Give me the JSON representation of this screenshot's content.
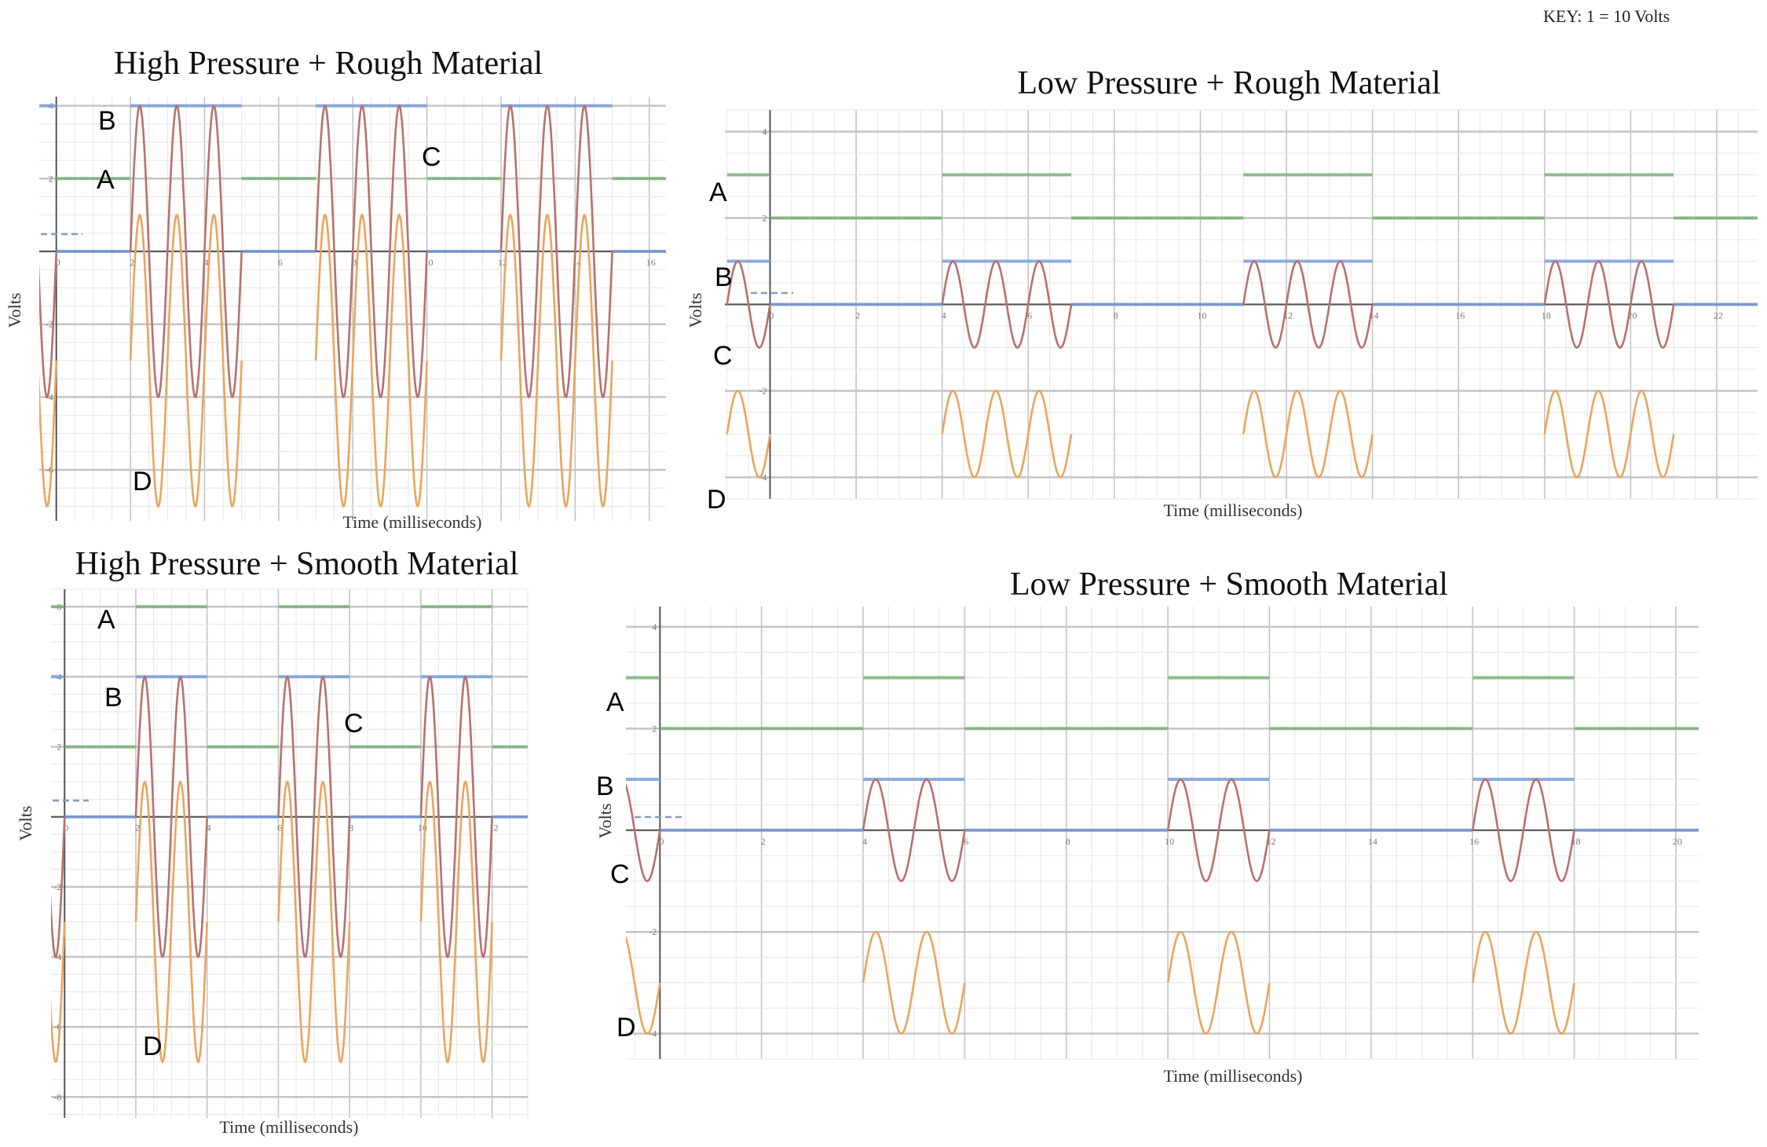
{
  "key": "KEY: 1 = 10 Volts",
  "colors": {
    "A": "#7db07b",
    "B": "#7a9fd8",
    "C": "#b8716d",
    "D": "#eba45c",
    "grid_minor": "#e6e6e6",
    "grid_major": "#c4c4c4",
    "axis": "#555555"
  },
  "chart_data": [
    {
      "type": "line",
      "title": "High Pressure + Rough Material",
      "xlabel": "Time (milliseconds)",
      "ylabel": "Volts",
      "xlim": [
        -0.46,
        16.45
      ],
      "ylim": [
        -7.4,
        4.25
      ],
      "xticks": [
        0,
        2,
        4,
        6,
        8,
        10,
        12,
        14,
        16
      ],
      "yticks": [
        4,
        2,
        -2,
        -4,
        -6
      ],
      "bursts": [
        [
          2,
          5
        ],
        [
          7,
          10
        ],
        [
          12,
          15
        ]
      ],
      "pre_burst": [
        -1,
        0
      ],
      "period": 1,
      "series": [
        {
          "name": "A",
          "kind": "step",
          "on": 2,
          "off": 2,
          "show_on": false
        },
        {
          "name": "B",
          "kind": "step",
          "on": 4,
          "off": 0
        },
        {
          "name": "C",
          "kind": "sine",
          "center": 0,
          "amplitude": 4
        },
        {
          "name": "D",
          "kind": "sine",
          "center": -3,
          "amplitude": 4
        }
      ]
    },
    {
      "type": "line",
      "title": "Low Pressure + Rough Material",
      "xlabel": "Time (milliseconds)",
      "ylabel": "Volts",
      "xlim": [
        -1.05,
        22.95
      ],
      "ylim": [
        -4.5,
        4.5
      ],
      "xticks": [
        0,
        2,
        4,
        6,
        8,
        10,
        12,
        14,
        16,
        18,
        20,
        22
      ],
      "yticks": [
        4,
        2,
        -2,
        -4
      ],
      "bursts": [
        [
          4,
          7
        ],
        [
          11,
          14
        ],
        [
          18,
          21
        ]
      ],
      "pre_burst": [
        -1,
        0
      ],
      "period": 1,
      "series": [
        {
          "name": "A",
          "kind": "step",
          "on": 3,
          "off": 2
        },
        {
          "name": "B",
          "kind": "step",
          "on": 1,
          "off": 0
        },
        {
          "name": "C",
          "kind": "sine",
          "center": 0,
          "amplitude": 1
        },
        {
          "name": "D",
          "kind": "sine",
          "center": -3,
          "amplitude": 1
        }
      ]
    },
    {
      "type": "line",
      "title": "High Pressure + Smooth Material",
      "xlabel": "Time (milliseconds)",
      "ylabel": "Volts",
      "xlim": [
        -0.38,
        13.0
      ],
      "ylim": [
        -8.6,
        6.5
      ],
      "xticks": [
        0,
        2,
        4,
        6,
        8,
        10,
        12
      ],
      "yticks": [
        6,
        4,
        2,
        -2,
        -4,
        -6,
        -8
      ],
      "bursts": [
        [
          2,
          4
        ],
        [
          6,
          8
        ],
        [
          10,
          12
        ]
      ],
      "pre_burst": [
        -1,
        0
      ],
      "period": 1,
      "series": [
        {
          "name": "A",
          "kind": "step",
          "on": 6,
          "off": 2
        },
        {
          "name": "B",
          "kind": "step",
          "on": 4,
          "off": 0
        },
        {
          "name": "C",
          "kind": "sine",
          "center": 0,
          "amplitude": 4
        },
        {
          "name": "D",
          "kind": "sine",
          "center": -3,
          "amplitude": 4
        }
      ]
    },
    {
      "type": "line",
      "title": "Low Pressure + Smooth Material",
      "xlabel": "Time (milliseconds)",
      "ylabel": "Volts",
      "xlim": [
        -0.67,
        20.45
      ],
      "ylim": [
        -4.5,
        4.4
      ],
      "xticks": [
        0,
        2,
        4,
        6,
        8,
        10,
        12,
        14,
        16,
        18,
        20
      ],
      "yticks": [
        4,
        2,
        -2,
        -4
      ],
      "bursts": [
        [
          4,
          6
        ],
        [
          10,
          12
        ],
        [
          16,
          18
        ]
      ],
      "pre_burst": [
        -1,
        0
      ],
      "period": 1,
      "series": [
        {
          "name": "A",
          "kind": "step",
          "on": 3,
          "off": 2
        },
        {
          "name": "B",
          "kind": "step",
          "on": 1,
          "off": 0
        },
        {
          "name": "C",
          "kind": "sine",
          "center": 0,
          "amplitude": 1
        },
        {
          "name": "D",
          "kind": "sine",
          "center": -3,
          "amplitude": 1
        }
      ]
    }
  ]
}
